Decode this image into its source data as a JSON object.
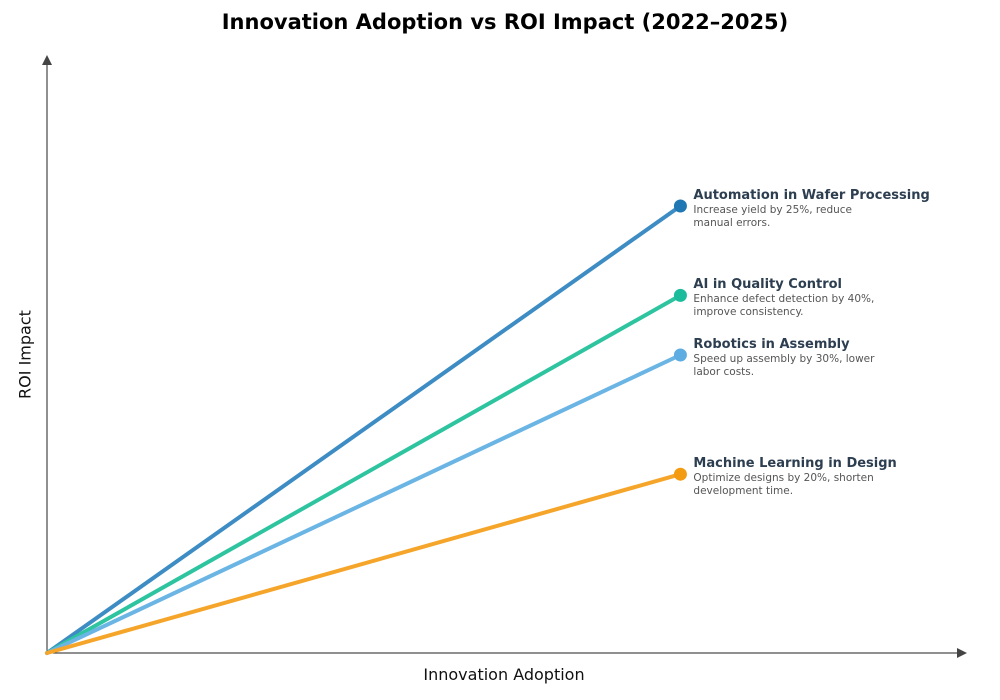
{
  "chart_data": {
    "type": "line",
    "title": "Innovation Adoption vs ROI Impact (2022–2025)",
    "xlabel": "Innovation Adoption",
    "ylabel": "ROI Impact",
    "xlim": [
      0,
      1
    ],
    "ylim": [
      0,
      1
    ],
    "grid": false,
    "ticks": false,
    "series": [
      {
        "name": "Automation in Wafer Processing",
        "description": "Increase yield by 25%, reduce manual errors.",
        "x": [
          0,
          0.69
        ],
        "y": [
          0,
          0.75
        ],
        "color": "#1f77b4",
        "line_color": "#3d8cc4"
      },
      {
        "name": "AI in Quality Control",
        "description": "Enhance defect detection by 40%, improve consistency.",
        "x": [
          0,
          0.69
        ],
        "y": [
          0,
          0.6
        ],
        "color": "#1abc9c",
        "line_color": "#2ec4a0"
      },
      {
        "name": "Robotics in Assembly",
        "description": "Speed up assembly by 30%, lower labor costs.",
        "x": [
          0,
          0.69
        ],
        "y": [
          0,
          0.5
        ],
        "color": "#5dade2",
        "line_color": "#6bb5e5"
      },
      {
        "name": "Machine Learning in Design",
        "description": "Optimize designs by 20%, shorten development time.",
        "x": [
          0,
          0.69
        ],
        "y": [
          0,
          0.3
        ],
        "color": "#f39c12",
        "line_color": "#f5a52a"
      }
    ]
  }
}
